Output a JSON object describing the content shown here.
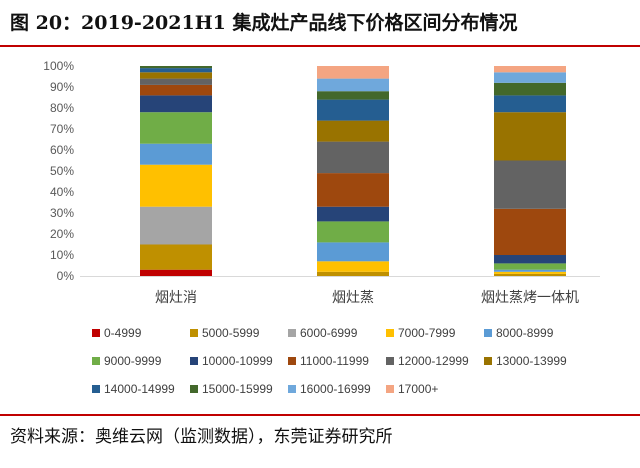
{
  "figure": {
    "title": "图 20：2019-2021H1 集成灶产品线下价格区间分布情况",
    "source": "资料来源：奥维云网（监测数据），东莞证券研究所"
  },
  "colors": {
    "rule": "#c00000",
    "axis": "#d9d9d9"
  },
  "chart_data": {
    "type": "bar",
    "stacked": true,
    "title": "",
    "xlabel": "",
    "ylabel": "",
    "ylim": [
      0,
      100
    ],
    "yticks": [
      "0%",
      "10%",
      "20%",
      "30%",
      "40%",
      "50%",
      "60%",
      "70%",
      "80%",
      "90%",
      "100%"
    ],
    "grid": false,
    "legend_position": "bottom",
    "categories": [
      "烟灶消",
      "烟灶蒸",
      "烟灶蒸烤一体机"
    ],
    "series": [
      {
        "name": "0-4999",
        "color": "#c00000",
        "values": [
          3,
          0,
          0
        ]
      },
      {
        "name": "5000-5999",
        "color": "#bf9000",
        "values": [
          12,
          2,
          1
        ]
      },
      {
        "name": "6000-6999",
        "color": "#a5a5a5",
        "values": [
          18,
          0,
          0
        ]
      },
      {
        "name": "7000-7999",
        "color": "#ffc000",
        "values": [
          20,
          5,
          1
        ]
      },
      {
        "name": "8000-8999",
        "color": "#5b9bd5",
        "values": [
          10,
          9,
          1
        ]
      },
      {
        "name": "9000-9999",
        "color": "#70ad47",
        "values": [
          15,
          10,
          3
        ]
      },
      {
        "name": "10000-10999",
        "color": "#264478",
        "values": [
          8,
          7,
          4
        ]
      },
      {
        "name": "11000-11999",
        "color": "#9e480e",
        "values": [
          5,
          16,
          22
        ]
      },
      {
        "name": "12000-12999",
        "color": "#636363",
        "values": [
          3,
          15,
          23
        ]
      },
      {
        "name": "13000-13999",
        "color": "#997300",
        "values": [
          3,
          10,
          23
        ]
      },
      {
        "name": "14000-14999",
        "color": "#255e91",
        "values": [
          2,
          10,
          8
        ]
      },
      {
        "name": "15000-15999",
        "color": "#43682b",
        "values": [
          1,
          4,
          6
        ]
      },
      {
        "name": "16000-16999",
        "color": "#6fa8dc",
        "values": [
          0,
          6,
          5
        ]
      },
      {
        "name": "17000+",
        "color": "#f4a582",
        "values": [
          0,
          6,
          3
        ]
      }
    ]
  }
}
